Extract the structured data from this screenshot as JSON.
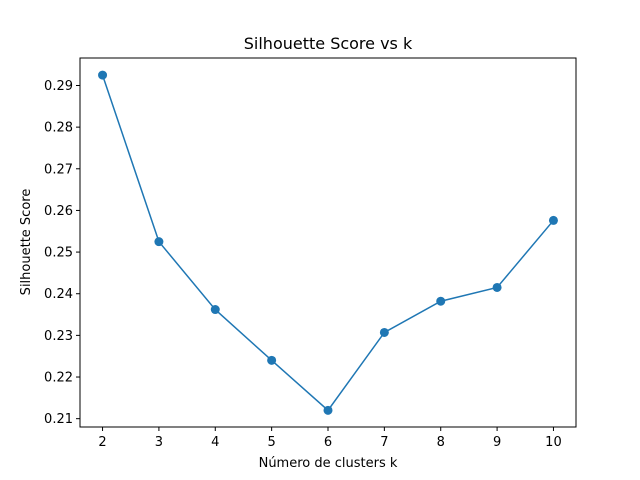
{
  "chart_data": {
    "type": "line",
    "title": "Silhouette Score vs k",
    "xlabel": "Número de clusters k",
    "ylabel": "Silhouette Score",
    "x": [
      2,
      3,
      4,
      5,
      6,
      7,
      8,
      9,
      10
    ],
    "series": [
      {
        "values": [
          0.2925,
          0.2525,
          0.2362,
          0.224,
          0.212,
          0.2307,
          0.2382,
          0.2415,
          0.2576
        ],
        "color": "#1f77b4",
        "marker": "circle"
      }
    ],
    "xlim": [
      1.6,
      10.4
    ],
    "ylim": [
      0.208,
      0.2966
    ],
    "xticks": [
      "2",
      "3",
      "4",
      "5",
      "6",
      "7",
      "8",
      "9",
      "10"
    ],
    "yticks": [
      "0.21",
      "0.22",
      "0.23",
      "0.24",
      "0.25",
      "0.26",
      "0.27",
      "0.28",
      "0.29"
    ],
    "grid": false,
    "legend": "none"
  }
}
